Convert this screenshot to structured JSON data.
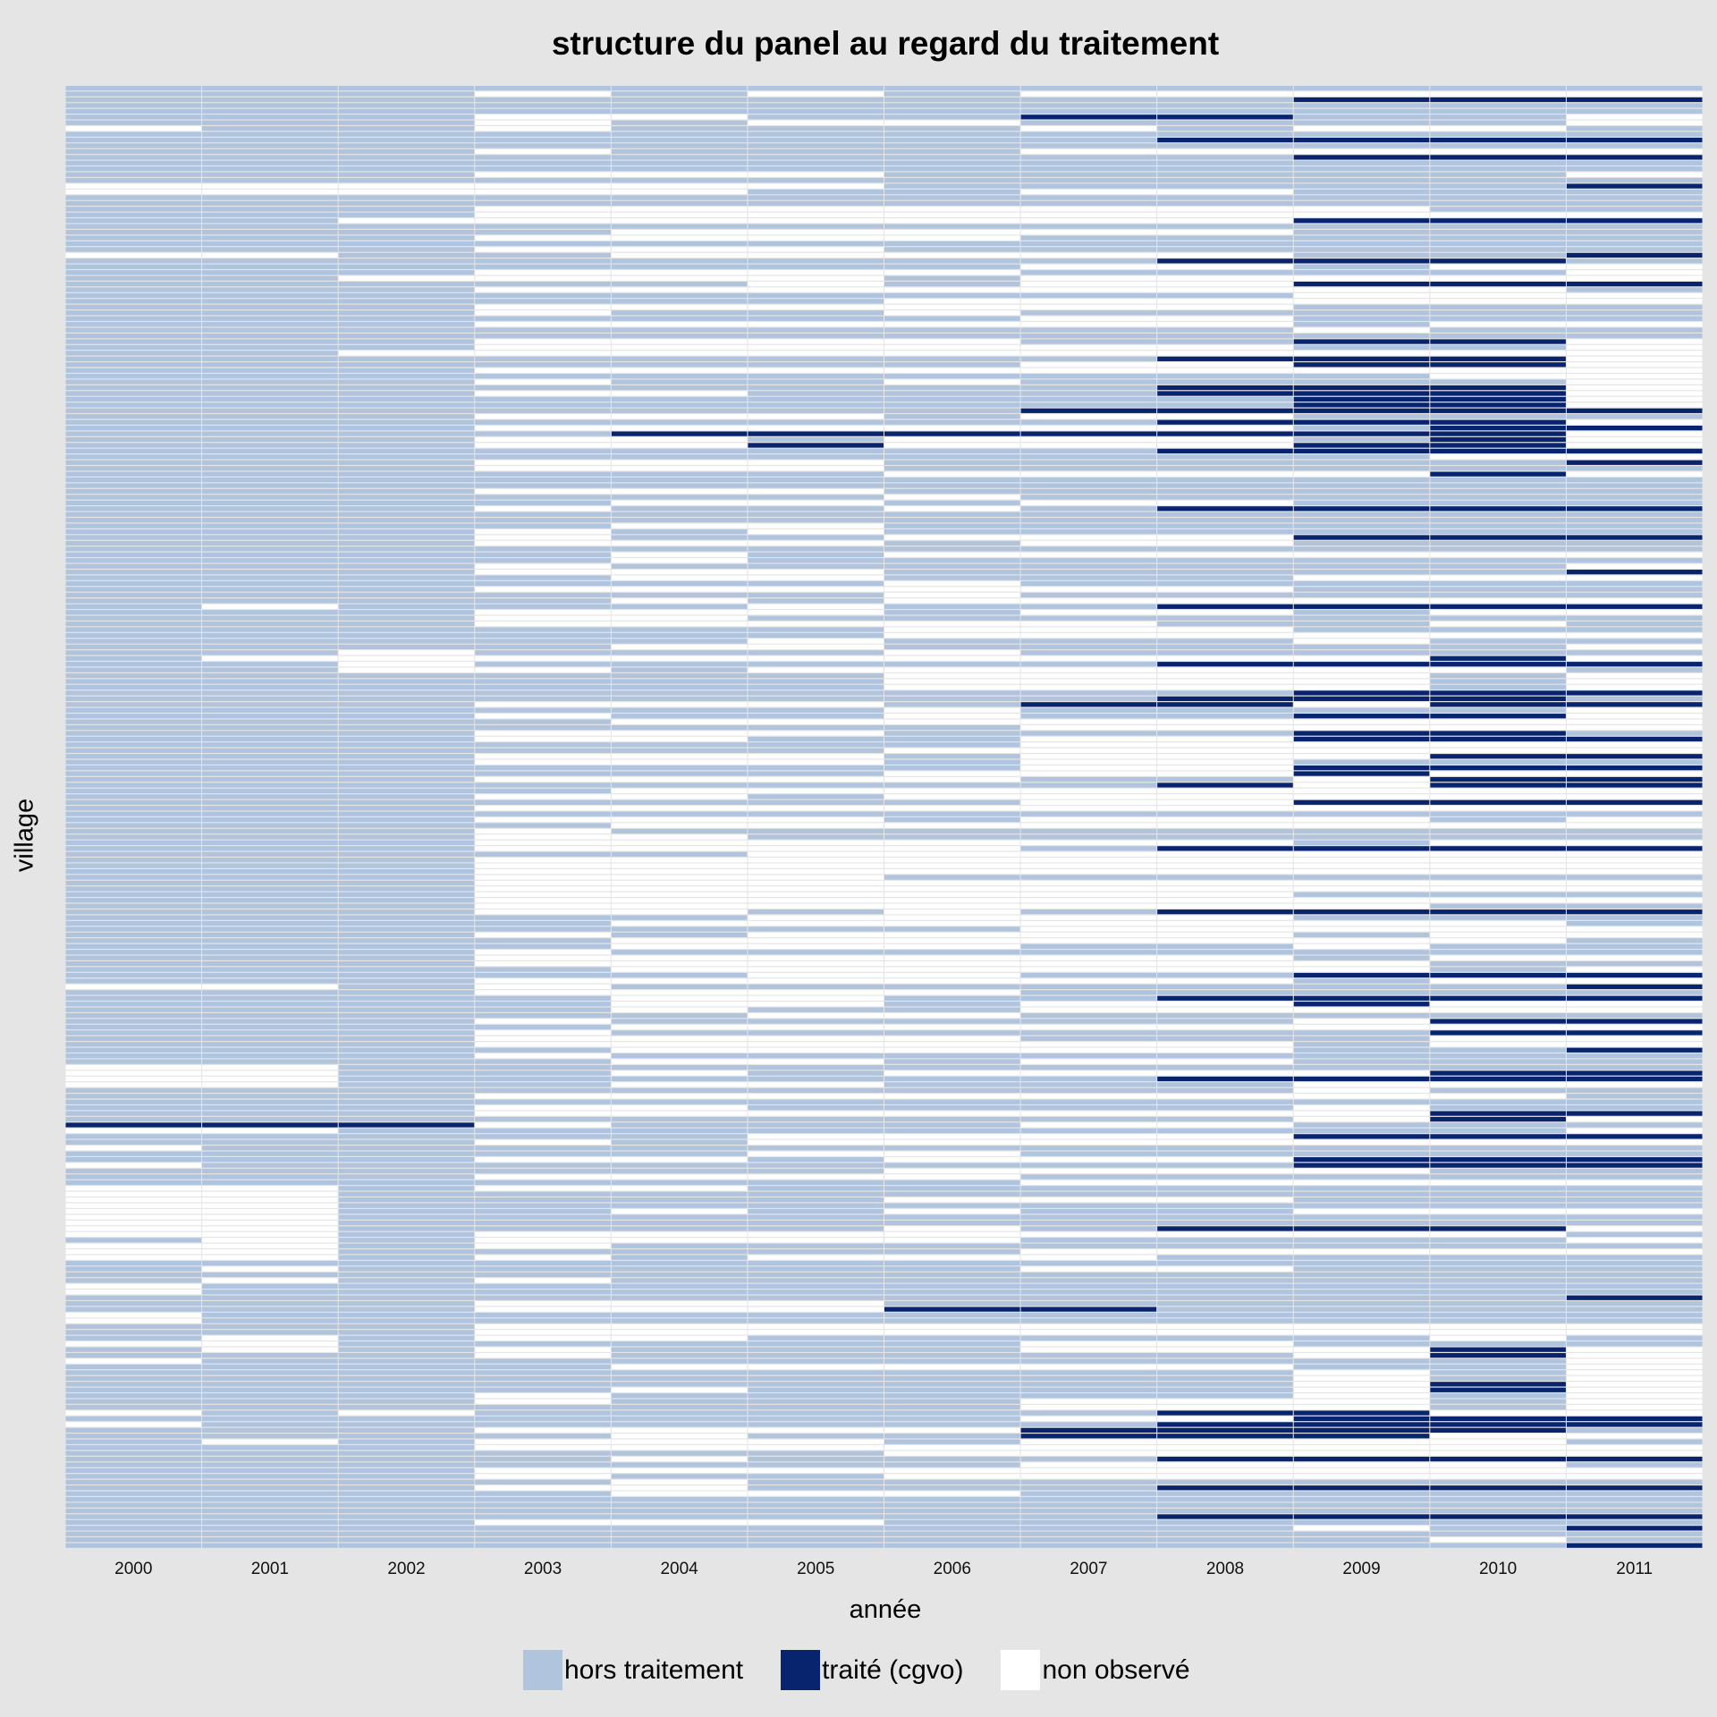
{
  "chart_data": {
    "type": "heatmap",
    "title": "structure du panel au regard du traitement",
    "xlabel": "année",
    "ylabel": "village",
    "x": [
      "2000",
      "2001",
      "2002",
      "2003",
      "2004",
      "2005",
      "2006",
      "2007",
      "2008",
      "2009",
      "2010",
      "2011"
    ],
    "y_tick_labels": [],
    "grid": true,
    "legend_position": "bottom",
    "categories": {
      "h": {
        "label": "hors traitement",
        "color": "#b0c4de"
      },
      "t": {
        "label": "traité (cgvo)",
        "color": "#08246e"
      },
      "n": {
        "label": "non observé",
        "color": "#ffffff"
      }
    },
    "rows_encoding": "each string = one village, one char per year 2000..2011; h=hors traitement, t=traité (cgvo), n=non observé",
    "rows": [
      "hhhhhhhhhhhh",
      "hhhnhnhnnnnn",
      "hhhhhhhhhttt",
      "hhhhhhhhhhhh",
      "hhhhhhhhhhhh",
      "hhhnnhhtthhn",
      "hhhnhnnhhhhn",
      "nhhnhhhnhnnh",
      "hhhhhhhhhhhh",
      "hhhhhhhhtttt",
      "hhhhhhhhhhhh",
      "hhhnhhhnnnnn",
      "hhhhhhhhhttt",
      "hhhhhhhhhhhh",
      "hhhhhhhhhhhh",
      "hhhnnnhhhhhn",
      "hhhhhhhhhhhh",
      "nnnnnnhhhhht",
      "nnnnnhhnnhhh",
      "hhhhhhhhhhhh",
      "hhhhhhhhhhhh",
      "hhhnnnnnnnhh",
      "hhhnnnnnnnnn",
      "hhnnnnnnnttt",
      "hhhhhhhhhhhh",
      "hhhhnnnnnhhh",
      "hhhnnnnhhhhh",
      "hhhhhhhhhhhh",
      "hhhnnnhhhhhh",
      "nnhhnnnnnhht",
      "hhhhhhhhttth",
      "hhhhhhhnnhnn",
      "hhhnnnnhhhhn",
      "hhnnnnhnnnnn",
      "hhhhhnhnnttt",
      "hhhnnnnnnnnh",
      "hhhhhhhhhnnn",
      "hhhhhhnnnnnn",
      "hhhnnnnnnhhh",
      "hhhnhhnhhhhh",
      "hhhhhhhnnhhh",
      "hhhnnnnnnhnn",
      "hhhhhhhhhnhh",
      "hhhhhhhhhhhh",
      "hhhnnnnhhttn",
      "hhhnnnnnnhhn",
      "hhnnnnnnnnnn",
      "hhhhhhhhtttn",
      "hhhhhhhnnttn",
      "hhhnnnnnnnnn",
      "hhhhhhhhhhnn",
      "hhhnhhnhhhhn",
      "hhhhhhhhtttn",
      "hhhnnhhhtttn",
      "hhhhhhhhhttn",
      "hhhhhhhhhttn",
      "hhhhhhhttttt",
      "hhhnnnhnnhhh",
      "hhhhhhhhtttn",
      "hhhnnnnnnhtt",
      "hhhhtttttttn",
      "hhhnnhnnnhtn",
      "hhhnntnnnttn",
      "hhhhhhhhtttt",
      "hhhhhhhhhhnn",
      "hhhnnnhhhhht",
      "hhhnnnhhhhhh",
      "hhhhhhnnnntn",
      "hhhhhhhhhhhh",
      "hhhhhhhhhhhh",
      "hhhnnnhhhhhh",
      "hhhhhhnhhhhh",
      "hhhhnnhnnhhh",
      "hhhnhhnhtttt",
      "hhhhhhhhhhhh",
      "hhhhhhhhhhhh",
      "hhhhnnhhhhhh",
      "hhhnhnhhhhhh",
      "hhhnhhnnnttt",
      "hhhnnnhnnhhh",
      "hhhhhhhhhhhh",
      "hhhhnhnnnnnn",
      "hhhhnhhhhhhh",
      "hhhnhhhhhhhn",
      "hhhnnnhhhhht",
      "hhhhnnhhhnnn",
      "hhhhhhnhhhhh",
      "hhhnnnnnnhhh",
      "hhhhhhnhhhhh",
      "hhhhnhnnnnnn",
      "hnhhhnhhtttt",
      "hhhnnnhnnhnn",
      "hhhnnhhhhhhh",
      "hhhnnnnnhhnh",
      "hhhhhhnnnhhh",
      "hhhhhhnnnnnn",
      "hhhhhnhhhnhh",
      "hhhhnnhhhhhn",
      "hhnhhhnhhhhh",
      "hnnnnnnnnntn",
      "hhnhhhhhtttt",
      "hhnnhnnnnnnh",
      "hhhhhhnnnnhn",
      "hhhhhhnnnnhn",
      "hhhhhhnnnnhn",
      "hhhhhhhhhttt",
      "hhhhhhhhttth",
      "hhhnnnhttntt",
      "hhhhhhnhhhhn",
      "hhhnhhnhhttn",
      "hhhhnnnnnnnn",
      "hhhhhhhnnnnn",
      "hhhnnnhhhtth",
      "hhhnnhhnnttt",
      "hhhhhhhnnnnn",
      "hhhhhhnnnnnn",
      "hhhnnnhnnntt",
      "hhhnnnhnnhhh",
      "hhhhhhhnnttt",
      "hhhhhhnnntnn",
      "hhhnnnnhhntt",
      "hhhhhhhhtntt",
      "hhhhnnnnnnnn",
      "hhhnnhnnnnnn",
      "hhhhhhhnnttt",
      "hhhnnnnnnnnn",
      "hhhhhhhhhhhh",
      "hhhnnnhnnnhn",
      "hhhhnnnnnnnn",
      "hhhnhhhhhhhh",
      "hhhnnhhhhhhh",
      "hhhnnnnnnhnn",
      "hhhnnnnhtttt",
      "hhhhhnnnnnnn",
      "hhhnnnnnnnnn",
      "hhhnnnnnnnnn",
      "hhhnnnnnnnnn",
      "hhhnnnhhhhhh",
      "hhhnnnnnnnnn",
      "hhhnnnnnnnnn",
      "hhhnnnnnnhhh",
      "hhhnnnnnnnnn",
      "hhhnnnnnnnhh",
      "hhhnnhnhtttt",
      "hhhhhnnnnhhh",
      "hhhhnnnnnnnh",
      "hhhhhhhnnnnn",
      "hhhnhnnnnhnn",
      "hhhhnnnnnnnh",
      "hhhhnnnhhnhh",
      "hhhnhhhhhhhh",
      "hhhnnnnnnhnn",
      "hhhnnnnnnnhh",
      "hhhhnnnnnnhn",
      "hhhhhnnhhttt",
      "hhhnnnnnnhnn",
      "nnhnhhhhhhht",
      "hhhnnnnhhhhh",
      "hhhhnnhhtttt",
      "hhhhnnhnntnn",
      "hhhhnhhnnnnn",
      "hhhhhnnhhhhh",
      "hhhnhhhhhntt",
      "hhhhnnnnnnnn",
      "hhhnhhhhhhtt",
      "hhhnnnnhhhnn",
      "hhhnnnnnnhnn",
      "hhhhnnnnnhht",
      "hhhnhhhhhhhh",
      "hhhhnnhnnhhh",
      "nnhhhhhhhhhh",
      "nnhhnhnnnntt",
      "nnhhhhhhtttt",
      "nnhhnnhhhnnn",
      "hhhhhhhhhnhh",
      "hhhnnnnnnnnh",
      "hhhhhhhhhhhh",
      "hhhnnhhhhnhh",
      "hhhnnnnnnntt",
      "hhhhhhhhhntn",
      "tttnhhhnnhhh",
      "nnhhhhhhhhhn",
      "hhhhhnnnnttt",
      "hhhnhnnnnnnn",
      "nhhhhhhhhhhh",
      "hhhhhnnhhhhh",
      "hhhnnhnnnttt",
      "nhhhhhhhhttt",
      "hhhhhhnnnnhh",
      "hhhnnnnhhhhh",
      "hhhhhhhnnnnn",
      "nnhnnhhhhhhh",
      "nnhhhhhhhhhh",
      "nnhhhhnnnhhh",
      "nnhhhhhhhhhh",
      "nnhhnhnhhnnn",
      "nnhhhhhhhhhh",
      "nnhhhhhhhhhh",
      "nnhhhhnhtttn",
      "nnhnnnnnnnnh",
      "hnhnnnnhhhhn",
      "nnhnhhhhhhhh",
      "nnhhhhhnnnnn",
      "nnhnhnnnhhhh",
      "hhhhhhhhhhhh",
      "hnhhhhhnnhhh",
      "hhhhhhhhhhhh",
      "hnhnhhhhhhhh",
      "nhhhhhhhhhhh",
      "nhhhhhhhhhhh",
      "hhhhhhhhhhht",
      "hhhnnnhhhhhh",
      "hhhnnntthhhh",
      "nhhhhhhhhhhh",
      "nhhhhhhhhhhh",
      "hhhnnnnnnnnn",
      "hhhnnnnnnnnn",
      "hnhnnhhhhhnh",
      "nnhhhhhnnhhh",
      "hnhnhhhnnntn",
      "hhhnhhhhhntn",
      "nhhhhhhhhhhn",
      "hhhhnnnnnhhn",
      "hhhhhhhhhnhn",
      "hhhhhhhhhnhn",
      "hhhhhhhhhntn",
      "hhhhnhhhhntn",
      "hhhnhhhhhnhn",
      "hhhnhhhnnnhn",
      "hhhhhhhnnnhn",
      "nhnhhhhhttnn",
      "hhhhhhhnnttt",
      "nhhhhhhhtttt",
      "hhhnnnntttth",
      "hhhhnhhtttnn",
      "hnhnnnhnnnnh",
      "hhhnnnnnnnnn",
      "hhhhhhnnnnnn",
      "hhhhnhhhtttt",
      "hhhhhhhnnnnh",
      "hhhnnnnnnnnn",
      "hhhnhhnnnnnn",
      "hhhhnhhhhhhh",
      "hhhnnhhhtttt",
      "hhhhnnnhhhhh",
      "hhhhhhhhhhhh",
      "hhhhhhhhhhhh",
      "hhhhhhhhhhhh",
      "hhhhhhhhtttt",
      "hhhnnnhhhhhh",
      "hhhhhhhhhnht",
      "hhhhhhhhhhhh",
      "hhhhhhhhhhnh",
      "hhhhhhhhhhht"
    ]
  }
}
